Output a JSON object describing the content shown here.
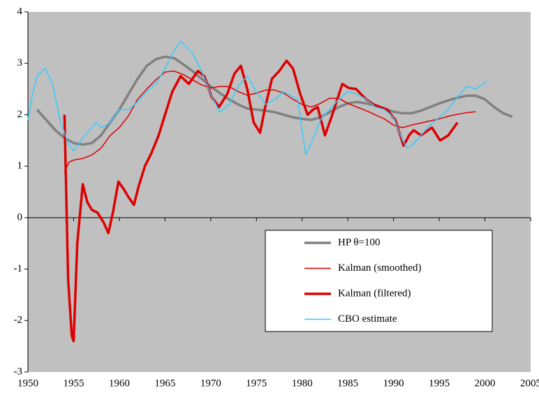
{
  "chart_data": {
    "type": "line",
    "xlim": [
      1950,
      2005
    ],
    "xticks": [
      1950,
      1955,
      1960,
      1965,
      1970,
      1975,
      1980,
      1985,
      1990,
      1995,
      2000,
      2005
    ],
    "ylim": [
      -3,
      4
    ],
    "yticks": [
      -3,
      -2,
      -1,
      0,
      1,
      2,
      3,
      4
    ],
    "legend": "lower-right",
    "series": [
      {
        "name": "HP θ=100",
        "color": "#808080",
        "width": 3.5,
        "x": [
          1951,
          1952,
          1953,
          1954,
          1955,
          1956,
          1957,
          1958,
          1959,
          1960,
          1961,
          1962,
          1963,
          1964,
          1965,
          1966,
          1967,
          1968,
          1969,
          1970,
          1971,
          1972,
          1973,
          1974,
          1975,
          1976,
          1977,
          1978,
          1979,
          1980,
          1981,
          1982,
          1983,
          1984,
          1985,
          1986,
          1987,
          1988,
          1989,
          1990,
          1991,
          1992,
          1993,
          1994,
          1995,
          1996,
          1997,
          1998,
          1999,
          2000,
          2001,
          2002,
          2003
        ],
        "values": [
          2.1,
          1.9,
          1.7,
          1.55,
          1.45,
          1.42,
          1.45,
          1.6,
          1.85,
          2.1,
          2.4,
          2.7,
          2.95,
          3.08,
          3.13,
          3.1,
          2.98,
          2.85,
          2.7,
          2.55,
          2.42,
          2.3,
          2.2,
          2.12,
          2.1,
          2.08,
          2.05,
          2.0,
          1.95,
          1.92,
          1.9,
          1.95,
          2.05,
          2.15,
          2.22,
          2.25,
          2.22,
          2.18,
          2.12,
          2.06,
          2.03,
          2.03,
          2.08,
          2.15,
          2.22,
          2.28,
          2.33,
          2.37,
          2.37,
          2.3,
          2.15,
          2.03,
          1.96
        ]
      },
      {
        "name": "Kalman (smoothed)",
        "color": "#dd0000",
        "width": 1.5,
        "x": [
          1954,
          1954.5,
          1955,
          1956,
          1957,
          1958,
          1959,
          1960,
          1961,
          1962,
          1963,
          1964,
          1965,
          1966,
          1967,
          1968,
          1969,
          1970,
          1971,
          1972,
          1973,
          1974,
          1975,
          1976,
          1977,
          1978,
          1979,
          1980,
          1981,
          1982,
          1983,
          1984,
          1985,
          1986,
          1987,
          1988,
          1989,
          1990,
          1991,
          1992,
          1993,
          1994,
          1995,
          1996,
          1997,
          1998,
          1999
        ],
        "values": [
          0.88,
          1.08,
          1.12,
          1.15,
          1.22,
          1.35,
          1.6,
          1.75,
          1.98,
          2.3,
          2.5,
          2.68,
          2.83,
          2.85,
          2.78,
          2.68,
          2.58,
          2.52,
          2.55,
          2.55,
          2.45,
          2.38,
          2.42,
          2.48,
          2.48,
          2.42,
          2.3,
          2.2,
          2.15,
          2.22,
          2.32,
          2.32,
          2.22,
          2.15,
          2.08,
          2.0,
          1.92,
          1.8,
          1.75,
          1.8,
          1.84,
          1.88,
          1.92,
          1.97,
          2.01,
          2.04,
          2.06
        ]
      },
      {
        "name": "Kalman (filtered)",
        "color": "#dd0000",
        "width": 3.5,
        "x": [
          1954,
          1954.4,
          1954.8,
          1955,
          1955.4,
          1956,
          1956.5,
          1957,
          1957.6,
          1958.3,
          1958.8,
          1959.3,
          1959.9,
          1960.5,
          1961,
          1961.6,
          1962.1,
          1962.8,
          1963.5,
          1964.3,
          1965,
          1965.8,
          1966.7,
          1967.6,
          1968.6,
          1969.3,
          1970.1,
          1970.9,
          1971.8,
          1972.6,
          1973.3,
          1974,
          1974.7,
          1975.4,
          1975.9,
          1976.7,
          1977.5,
          1978.3,
          1979,
          1979.8,
          1980.6,
          1981.2,
          1981.7,
          1982.5,
          1983.3,
          1984.4,
          1985.1,
          1985.9,
          1987,
          1987.8,
          1989.3,
          1990.2,
          1991.1,
          1991.7,
          1992.2,
          1993,
          1994.2,
          1995.1,
          1996,
          1997
        ],
        "values": [
          2.0,
          -1.2,
          -2.3,
          -2.4,
          -0.5,
          0.65,
          0.3,
          0.15,
          0.1,
          -0.1,
          -0.3,
          0.1,
          0.7,
          0.55,
          0.4,
          0.25,
          0.6,
          1.0,
          1.25,
          1.6,
          2.0,
          2.45,
          2.75,
          2.6,
          2.85,
          2.75,
          2.35,
          2.15,
          2.4,
          2.8,
          2.95,
          2.5,
          1.85,
          1.65,
          2.1,
          2.7,
          2.85,
          3.05,
          2.9,
          2.4,
          2.0,
          2.1,
          2.15,
          1.6,
          2.0,
          2.6,
          2.52,
          2.5,
          2.3,
          2.2,
          2.1,
          1.9,
          1.4,
          1.6,
          1.7,
          1.6,
          1.75,
          1.5,
          1.6,
          1.85
        ]
      },
      {
        "name": "CBO estimate",
        "color": "#33ccff",
        "width": 1.5,
        "x": [
          1950,
          1950.5,
          1951,
          1951.9,
          1952.7,
          1953.5,
          1954.5,
          1955,
          1956,
          1957,
          1957.5,
          1958,
          1959,
          1960,
          1961,
          1962,
          1963,
          1964,
          1965,
          1966,
          1966.7,
          1968,
          1969,
          1970,
          1971,
          1972,
          1973,
          1974,
          1975,
          1976,
          1977,
          1978,
          1979,
          1979.5,
          1980.4,
          1981,
          1982,
          1983,
          1984,
          1985,
          1986,
          1987,
          1988,
          1989,
          1990,
          1991,
          1991.5,
          1992,
          1993,
          1994,
          1995,
          1996,
          1997,
          1998,
          1999,
          2000.2
        ],
        "values": [
          1.9,
          2.4,
          2.75,
          2.9,
          2.6,
          1.9,
          1.4,
          1.3,
          1.55,
          1.75,
          1.85,
          1.75,
          1.85,
          2.1,
          2.1,
          2.25,
          2.45,
          2.6,
          2.9,
          3.25,
          3.43,
          3.2,
          2.85,
          2.4,
          2.05,
          2.2,
          2.55,
          2.75,
          2.45,
          2.2,
          2.3,
          2.45,
          2.35,
          2.3,
          1.22,
          1.45,
          1.9,
          2.1,
          2.3,
          2.45,
          2.4,
          2.3,
          2.15,
          2.1,
          1.95,
          1.5,
          1.35,
          1.4,
          1.6,
          1.8,
          1.95,
          2.1,
          2.35,
          2.55,
          2.5,
          2.65
        ]
      }
    ]
  }
}
